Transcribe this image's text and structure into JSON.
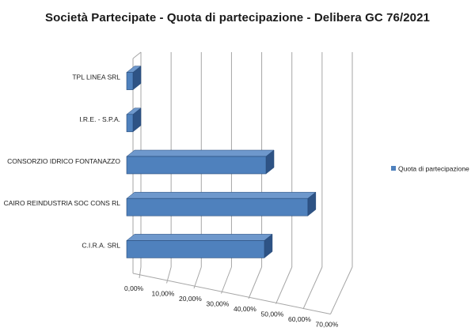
{
  "chart_data": {
    "type": "bar",
    "orientation": "horizontal",
    "style": "3d",
    "title": "Società Partecipate - Quota di partecipazione - Delibera GC 76/2021",
    "categories": [
      "TPL LINEA SRL",
      "I.R.E. - S.P.A.",
      "CONSORZIO IDRICO FONTANAZZO",
      "CAIRO REINDUSTRIA SOC CONS RL",
      "C.I.R.A. SRL"
    ],
    "series": [
      {
        "name": "Quota di partecipazione",
        "values": [
          0.0,
          0.0,
          0.4615,
          0.6,
          0.4561
        ]
      }
    ],
    "x_ticks": [
      "0,00%",
      "10,00%",
      "20,00%",
      "30,00%",
      "40,00%",
      "50,00%",
      "60,00%",
      "70,00%"
    ],
    "xlim": [
      0,
      0.7
    ],
    "grid": true,
    "legend_position": "right",
    "colors": {
      "bar_front": "#4f81bd",
      "bar_top": "#6e98cc",
      "bar_side": "#2e5385",
      "bar_edge": "#274a78",
      "grid": "#a6a6a6",
      "text": "#1a1a1a"
    }
  }
}
